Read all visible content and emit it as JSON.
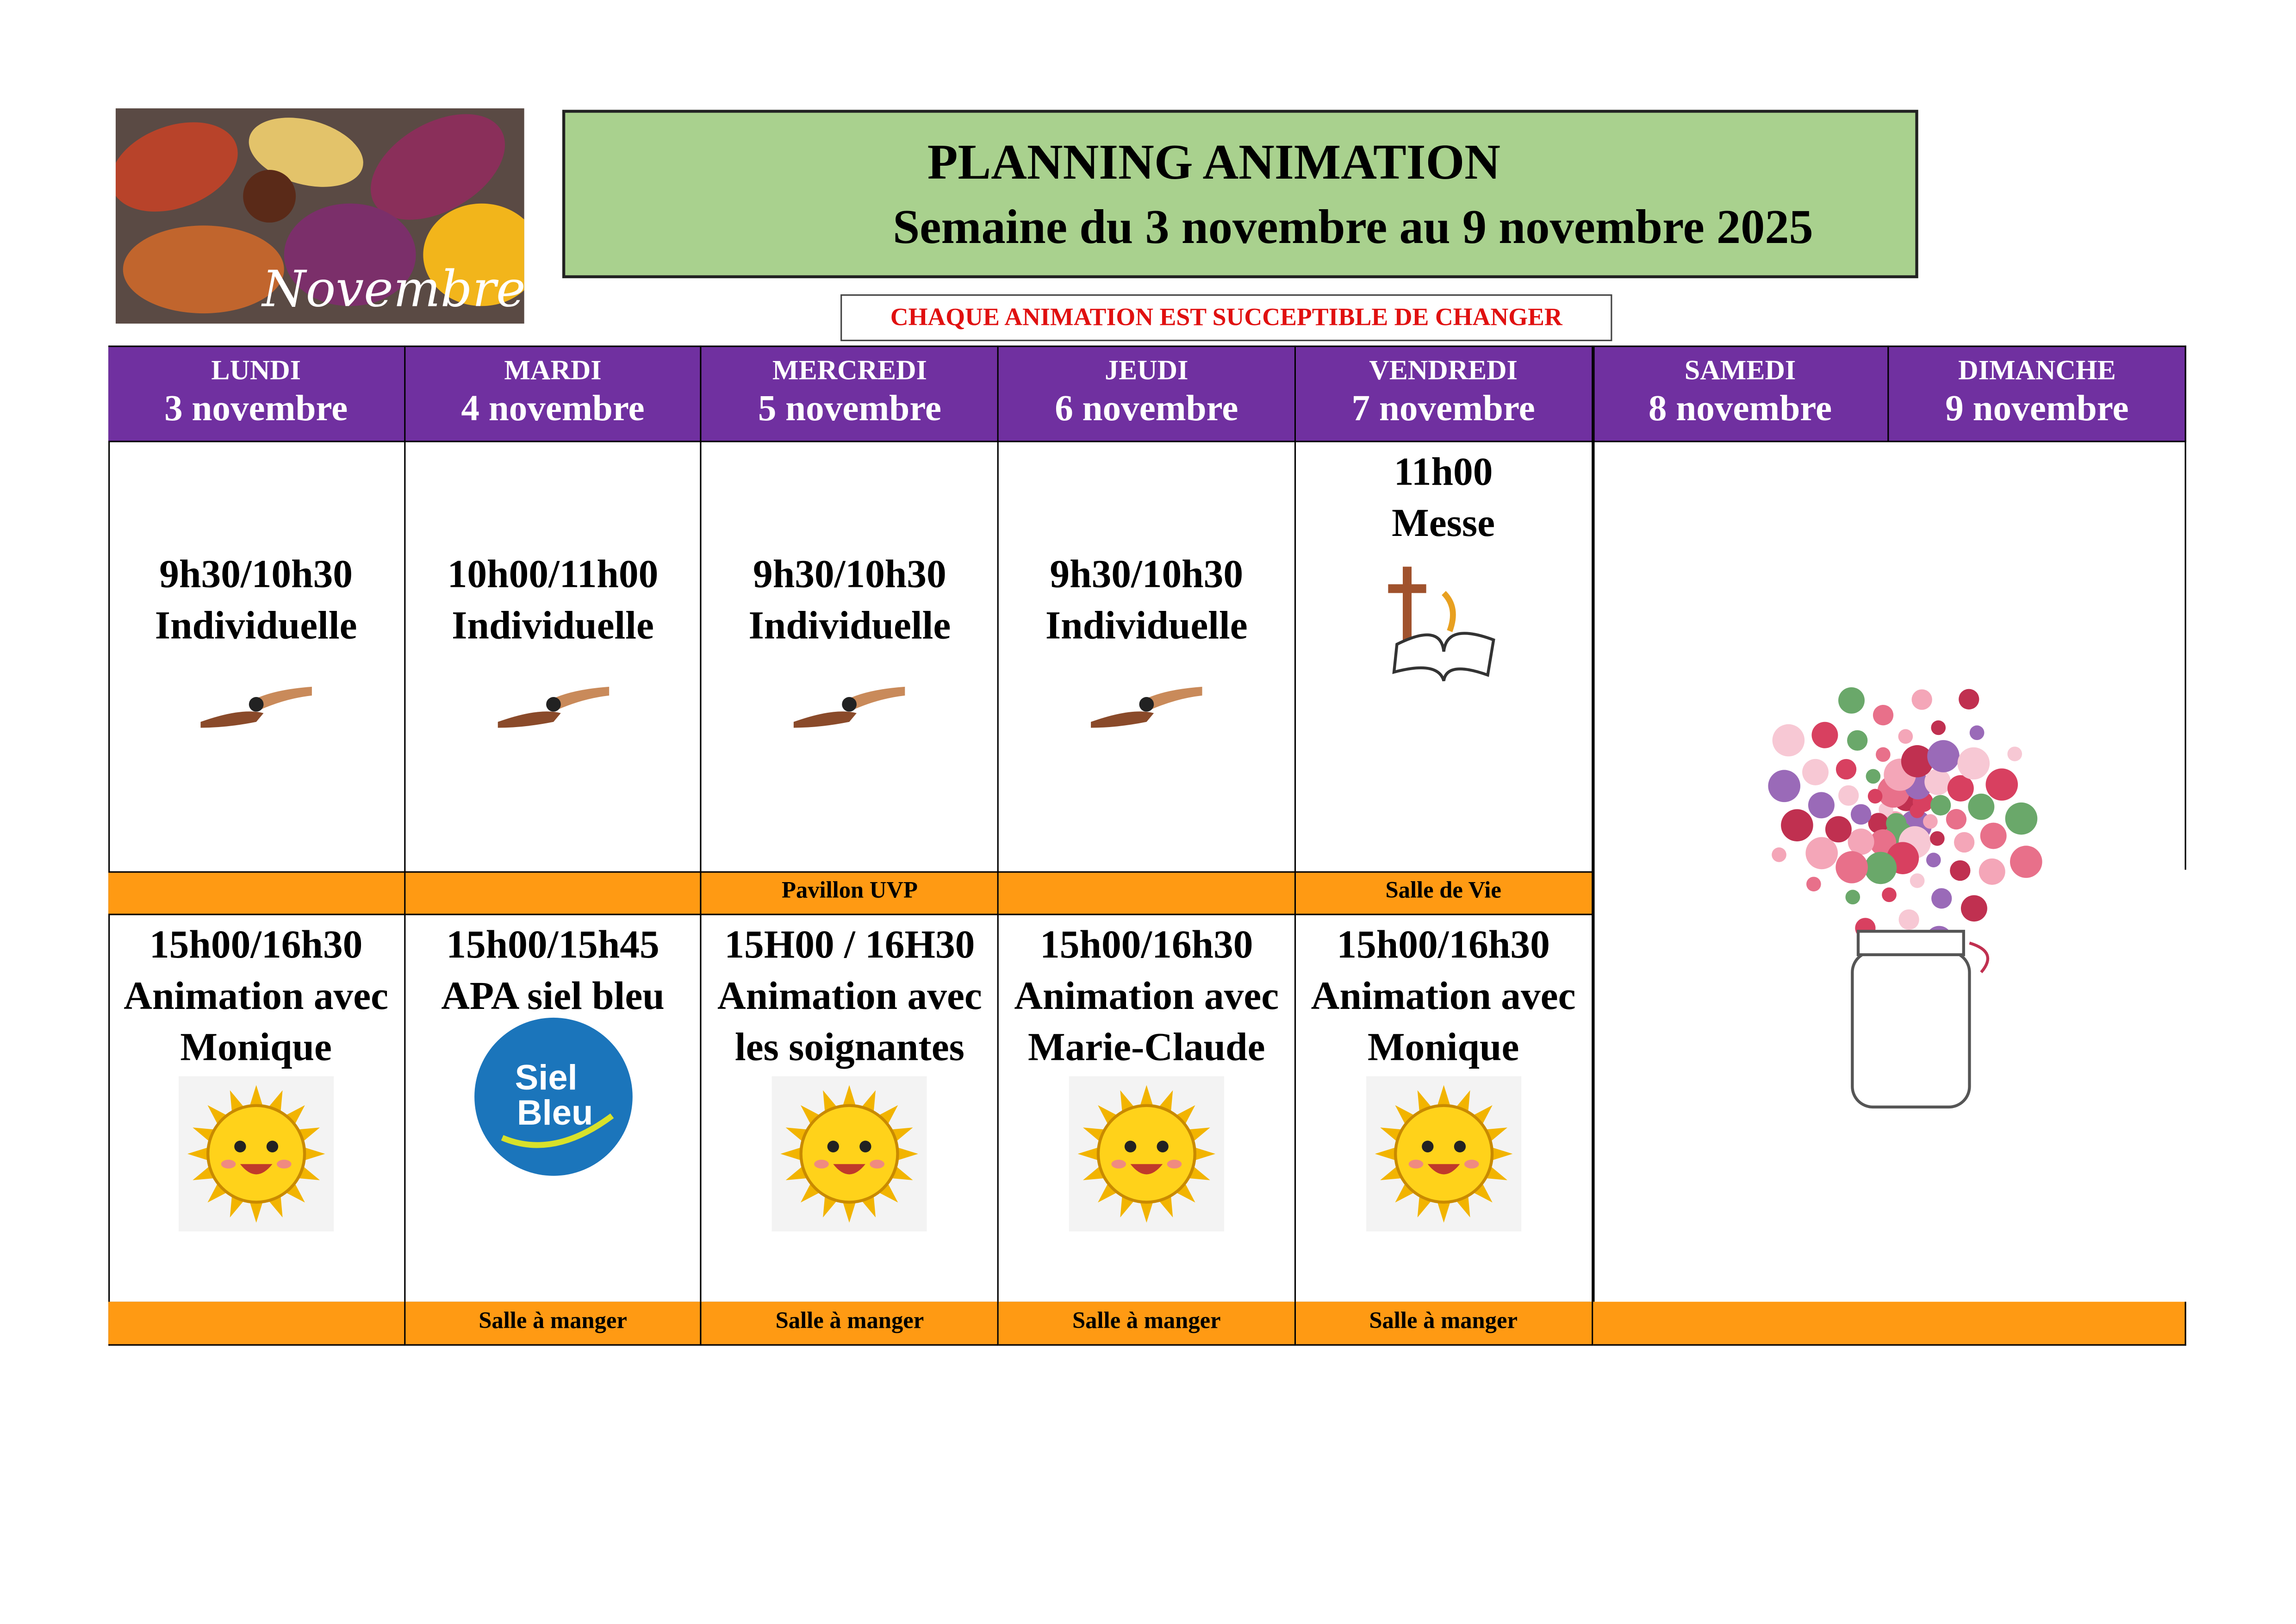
{
  "header": {
    "image_text": "Novembre",
    "title": "PLANNING ANIMATION",
    "subtitle": "Semaine du 3 novembre au 9 novembre 2025",
    "notice": "CHAQUE ANIMATION EST SUCCEPTIBLE DE CHANGER"
  },
  "table": {
    "days": [
      {
        "name": "LUNDI",
        "date": "3 novembre"
      },
      {
        "name": "MARDI",
        "date": "4 novembre"
      },
      {
        "name": "MERCREDI",
        "date": "5 novembre"
      },
      {
        "name": "JEUDI",
        "date": "6 novembre"
      },
      {
        "name": "VENDREDI",
        "date": "7 novembre"
      },
      {
        "name": "SAMEDI",
        "date": "8 novembre"
      },
      {
        "name": "DIMANCHE",
        "date": "9 novembre"
      }
    ],
    "morning": [
      {
        "time": "9h30/10h30",
        "activity": "Individuelle"
      },
      {
        "time": "10h00/11h00",
        "activity": "Individuelle"
      },
      {
        "time": "9h30/10h30",
        "activity": "Individuelle",
        "location": "Pavillon UVP"
      },
      {
        "time": "9h30/10h30",
        "activity": "Individuelle"
      },
      {
        "time": "11h00",
        "activity": "Messe",
        "location": "Salle de Vie"
      }
    ],
    "afternoon": [
      {
        "time": "15h00/16h30",
        "activity": "Animation avec Monique"
      },
      {
        "time": "15h00/15h45",
        "activity": "APA siel bleu",
        "location": "Salle à manger",
        "logo": "Siel Bleu"
      },
      {
        "time": "15H00 / 16H30",
        "activity": "Animation avec les soignantes",
        "location": "Salle à manger"
      },
      {
        "time": "15h00/16h30",
        "activity": "Animation avec Marie-Claude",
        "location": "Salle à manger"
      },
      {
        "time": "15h00/16h30",
        "activity": "Animation avec Monique",
        "location": "Salle à manger"
      }
    ]
  }
}
